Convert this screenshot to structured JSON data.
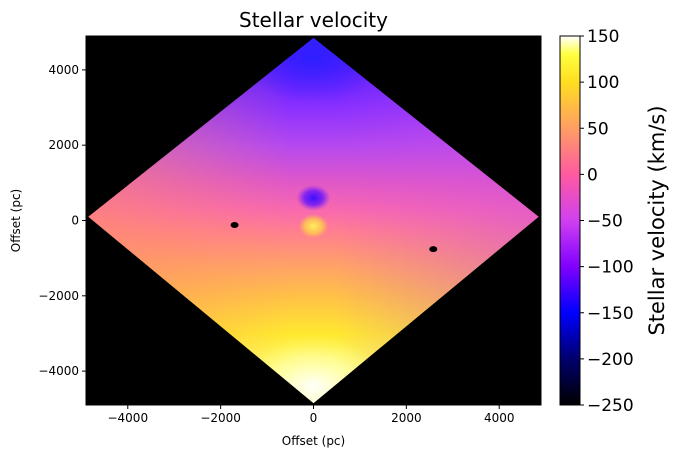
{
  "chart_data": {
    "type": "heatmap",
    "title": "Stellar velocity",
    "xlabel": "Offset (pc)",
    "ylabel": "Offset (pc)",
    "xlim": [
      -4900,
      4900
    ],
    "ylim": [
      -4900,
      4900
    ],
    "x_ticks": [
      -4000,
      -2000,
      0,
      2000,
      4000
    ],
    "y_ticks": [
      -4000,
      -2000,
      0,
      2000,
      4000
    ],
    "x_tick_labels": [
      "−4000",
      "−2000",
      "0",
      "2000",
      "4000"
    ],
    "y_tick_labels": [
      "−4000",
      "−2000",
      "0",
      "2000",
      "4000"
    ],
    "background_color": "#000000",
    "map_shape": "diamond",
    "map_corners": {
      "top": [
        0,
        4850
      ],
      "right": [
        4850,
        100
      ],
      "bottom": [
        0,
        -4850
      ],
      "left": [
        -4850,
        100
      ]
    },
    "velocity_samples": [
      {
        "x": 0,
        "y": 4300,
        "v": -150
      },
      {
        "x": 0,
        "y": 2000,
        "v": -80
      },
      {
        "x": 0,
        "y": 600,
        "v": -130
      },
      {
        "x": 0,
        "y": -150,
        "v": 110
      },
      {
        "x": 0,
        "y": -2000,
        "v": 100
      },
      {
        "x": 0,
        "y": -4500,
        "v": 150
      },
      {
        "x": -4600,
        "y": 100,
        "v": 20
      },
      {
        "x": 4600,
        "y": 100,
        "v": -20
      }
    ],
    "masked_spots": [
      {
        "x": -1700,
        "y": -120
      },
      {
        "x": 2580,
        "y": -760
      }
    ],
    "colorbar": {
      "label": "Stellar velocity (km/s)",
      "colormap": "gnuplot2",
      "range": [
        -250,
        150
      ],
      "ticks": [
        150,
        100,
        50,
        0,
        -50,
        -100,
        -150,
        -200,
        -250
      ],
      "tick_labels": [
        "150",
        "100",
        "50",
        "0",
        "−50",
        "−100",
        "−150",
        "−200",
        "−250"
      ],
      "stops": [
        {
          "v": -250,
          "color": "#000000"
        },
        {
          "v": -200,
          "color": "#00006e"
        },
        {
          "v": -150,
          "color": "#0000ff"
        },
        {
          "v": -100,
          "color": "#8000ff"
        },
        {
          "v": -50,
          "color": "#d040f0"
        },
        {
          "v": 0,
          "color": "#ff5aa0"
        },
        {
          "v": 50,
          "color": "#ff9e64"
        },
        {
          "v": 100,
          "color": "#ffde20"
        },
        {
          "v": 130,
          "color": "#ffff40"
        },
        {
          "v": 150,
          "color": "#ffffff"
        }
      ]
    }
  }
}
